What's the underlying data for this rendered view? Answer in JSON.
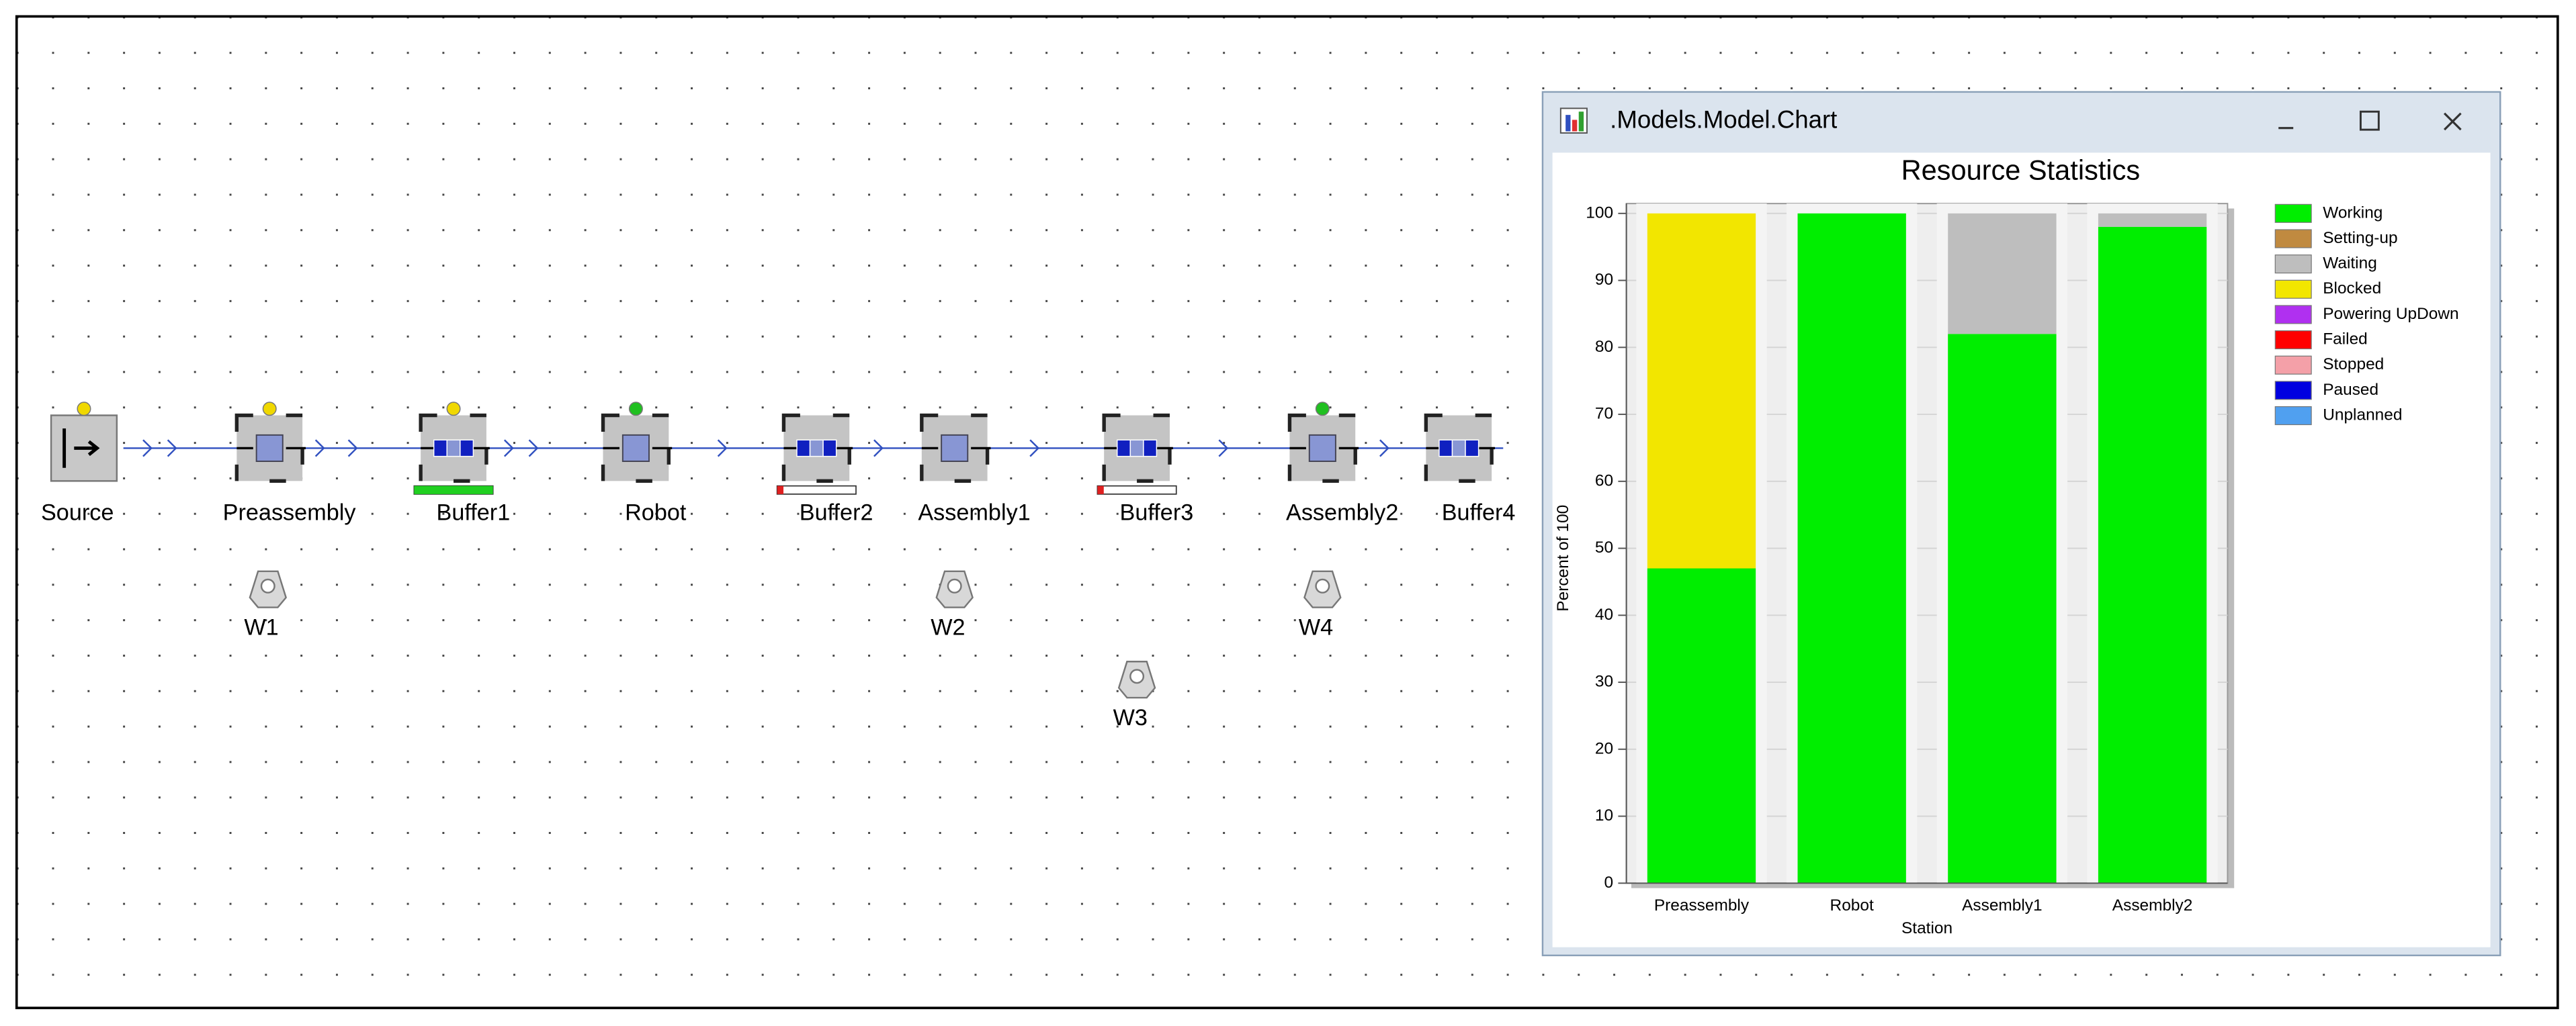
{
  "model": {
    "stations": [
      "Source",
      "Preassembly",
      "Buffer1",
      "Robot",
      "Buffer2",
      "Assembly1",
      "Buffer3",
      "Assembly2",
      "Buffer4"
    ],
    "workers": [
      "W1",
      "W2",
      "W3",
      "W4"
    ]
  },
  "window": {
    "title": ".Models.Model.Chart"
  },
  "chart_data": {
    "type": "bar",
    "stacked": true,
    "title": "Resource Statistics",
    "x_label": "Station",
    "y_label": "Percent of 100",
    "categories": [
      "Preassembly",
      "Robot",
      "Assembly1",
      "Assembly2"
    ],
    "series": [
      {
        "name": "Working",
        "color": "#00ee00",
        "values": [
          47,
          100,
          82,
          98
        ]
      },
      {
        "name": "Setting-up",
        "color": "#c08a40",
        "values": [
          0,
          0,
          0,
          0
        ]
      },
      {
        "name": "Waiting",
        "color": "#bebebe",
        "values": [
          0,
          0,
          18,
          2
        ]
      },
      {
        "name": "Blocked",
        "color": "#f2e600",
        "values": [
          53,
          0,
          0,
          0
        ]
      },
      {
        "name": "Powering UpDown",
        "color": "#b030f0",
        "values": [
          0,
          0,
          0,
          0
        ]
      },
      {
        "name": "Failed",
        "color": "#ff0000",
        "values": [
          0,
          0,
          0,
          0
        ]
      },
      {
        "name": "Stopped",
        "color": "#f4a0a8",
        "values": [
          0,
          0,
          0,
          0
        ]
      },
      {
        "name": "Paused",
        "color": "#0000e0",
        "values": [
          0,
          0,
          0,
          0
        ]
      },
      {
        "name": "Unplanned",
        "color": "#50a0f0",
        "values": [
          0,
          0,
          0,
          0
        ]
      }
    ],
    "ylim": [
      0,
      100
    ],
    "yticks": [
      0,
      10,
      20,
      30,
      40,
      50,
      60,
      70,
      80,
      90,
      100
    ],
    "grid": true,
    "legend": "right"
  }
}
